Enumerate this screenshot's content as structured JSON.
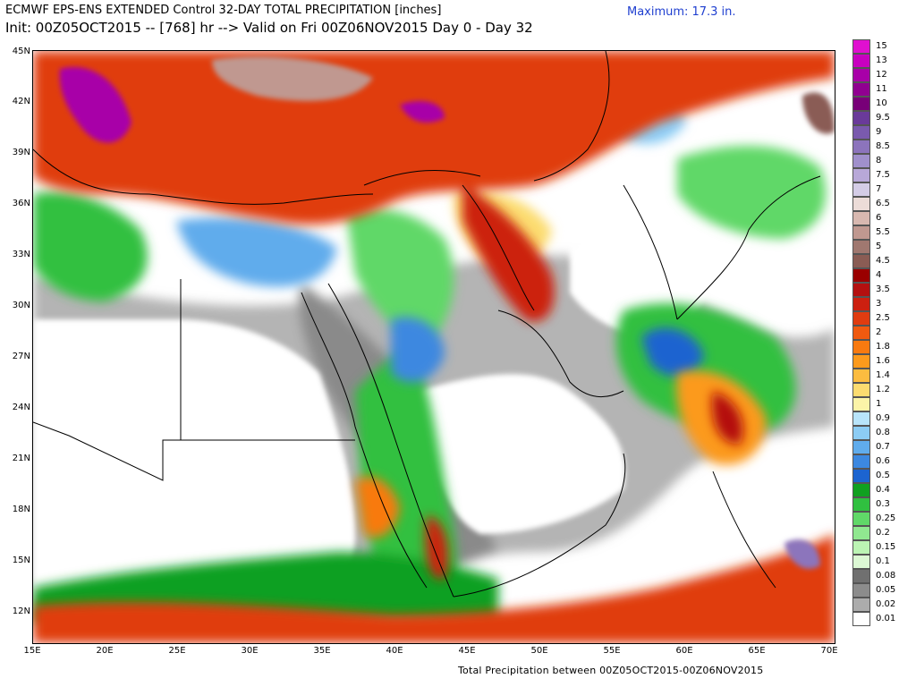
{
  "header": {
    "line1": "ECMWF EPS-ENS EXTENDED Control 32-DAY TOTAL PRECIPITATION [inches]",
    "line2": "Init: 00Z05OCT2015 -- [768] hr --> Valid on Fri 00Z06NOV2015  Day 0 - Day 32",
    "maximum_label": "Maximum:",
    "maximum_value": "17.3 in."
  },
  "footer": {
    "caption": "Total Precipitation between 00Z05OCT2015-00Z06NOV2015"
  },
  "axes": {
    "latitudes": [
      "45N",
      "42N",
      "39N",
      "36N",
      "33N",
      "30N",
      "27N",
      "24N",
      "21N",
      "18N",
      "15N",
      "12N"
    ],
    "longitudes": [
      "15E",
      "20E",
      "25E",
      "30E",
      "35E",
      "40E",
      "45E",
      "50E",
      "55E",
      "60E",
      "65E",
      "70E"
    ]
  },
  "colorbar": {
    "levels": [
      {
        "label": "15",
        "color": "#e010d0"
      },
      {
        "label": "13",
        "color": "#c800c0"
      },
      {
        "label": "12",
        "color": "#a800a8"
      },
      {
        "label": "11",
        "color": "#900090"
      },
      {
        "label": "10",
        "color": "#780078"
      },
      {
        "label": "9.5",
        "color": "#6a3a9a"
      },
      {
        "label": "9",
        "color": "#7a5aae"
      },
      {
        "label": "8.5",
        "color": "#8c74bc"
      },
      {
        "label": "8",
        "color": "#a090cc"
      },
      {
        "label": "7.5",
        "color": "#b8a8d8"
      },
      {
        "label": "7",
        "color": "#d4cce6"
      },
      {
        "label": "6.5",
        "color": "#ecdcd8"
      },
      {
        "label": "6",
        "color": "#d8b8b0"
      },
      {
        "label": "5.5",
        "color": "#c09890"
      },
      {
        "label": "5",
        "color": "#a07870"
      },
      {
        "label": "4.5",
        "color": "#8a5c54"
      },
      {
        "label": "4",
        "color": "#9a0000"
      },
      {
        "label": "3.5",
        "color": "#b41010"
      },
      {
        "label": "3",
        "color": "#cc2010"
      },
      {
        "label": "2.5",
        "color": "#e03c10"
      },
      {
        "label": "2",
        "color": "#f05a10"
      },
      {
        "label": "1.8",
        "color": "#f87a10"
      },
      {
        "label": "1.6",
        "color": "#fc9a1c"
      },
      {
        "label": "1.4",
        "color": "#fcbc40"
      },
      {
        "label": "1.2",
        "color": "#fcdc70"
      },
      {
        "label": "1",
        "color": "#fcf4a8"
      },
      {
        "label": "0.9",
        "color": "#b8e4fa"
      },
      {
        "label": "0.8",
        "color": "#8cccf4"
      },
      {
        "label": "0.7",
        "color": "#60acec"
      },
      {
        "label": "0.6",
        "color": "#3c88e0"
      },
      {
        "label": "0.5",
        "color": "#1c64d0"
      },
      {
        "label": "0.4",
        "color": "#10a020"
      },
      {
        "label": "0.3",
        "color": "#30c040"
      },
      {
        "label": "0.25",
        "color": "#60d868"
      },
      {
        "label": "0.2",
        "color": "#90e890"
      },
      {
        "label": "0.15",
        "color": "#bcf4b4"
      },
      {
        "label": "0.1",
        "color": "#dcf8d4"
      },
      {
        "label": "0.08",
        "color": "#707070"
      },
      {
        "label": "0.05",
        "color": "#8c8c8c"
      },
      {
        "label": "0.02",
        "color": "#acacac"
      },
      {
        "label": "0.01",
        "color": "#ffffff"
      }
    ]
  }
}
